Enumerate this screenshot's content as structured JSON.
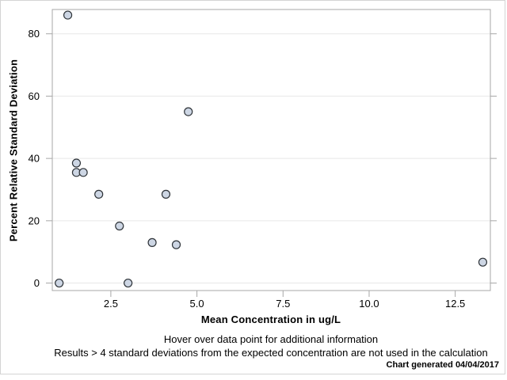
{
  "chart_data": {
    "type": "scatter",
    "title": "",
    "xlabel": "Mean Concentration in ug/L",
    "ylabel": "Percent Relative Standard Deviation",
    "points": [
      {
        "x": 1.25,
        "y": 86.0
      },
      {
        "x": 1.5,
        "y": 38.5
      },
      {
        "x": 1.5,
        "y": 35.5
      },
      {
        "x": 1.7,
        "y": 35.5
      },
      {
        "x": 2.15,
        "y": 28.5
      },
      {
        "x": 4.1,
        "y": 28.5
      },
      {
        "x": 4.75,
        "y": 55.0
      },
      {
        "x": 2.75,
        "y": 18.3
      },
      {
        "x": 3.7,
        "y": 13.0
      },
      {
        "x": 4.4,
        "y": 12.3
      },
      {
        "x": 1.0,
        "y": 0.0
      },
      {
        "x": 3.0,
        "y": 0.0
      },
      {
        "x": 13.3,
        "y": 6.7
      }
    ],
    "xticks": [
      2.5,
      5.0,
      7.5,
      10.0,
      12.5
    ],
    "yticks": [
      0,
      20,
      40,
      60,
      80
    ],
    "xtick_labels": [
      "2.5",
      "5.0",
      "7.5",
      "10.0",
      "12.5"
    ],
    "ytick_labels": [
      "0",
      "20",
      "40",
      "60",
      "80"
    ],
    "xlim": [
      0.8,
      13.52
    ],
    "ylim": [
      -2.4,
      87.8
    ],
    "grid": "horizontal-only",
    "legend": "none",
    "marker": {
      "shape": "circle",
      "fill": "#cdd6e4",
      "stroke": "#2e3338"
    }
  },
  "footer": {
    "hint_line": "Hover over data point for additional information",
    "note_line": "Results > 4 standard deviations from the expected concentration are not used in the calculation",
    "generated_line": "Chart generated 04/04/2017"
  },
  "colors": {
    "frame": "#a7a7a7",
    "tick": "#a7a7a7",
    "gridline": "#e7e7e7",
    "panel_border": "#d4d4d4",
    "text": "#000000",
    "marker_fill": "#cdd6e4",
    "marker_stroke": "#2e3338",
    "background": "#ffffff"
  }
}
